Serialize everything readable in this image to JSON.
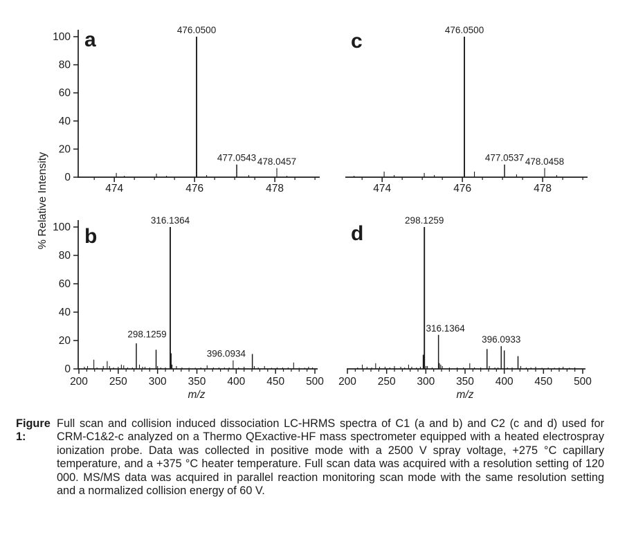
{
  "figure": {
    "caption_label": "Figure 1:",
    "caption_text": "Full scan and collision induced dissociation LC-HRMS spectra of C1 (a and b) and C2 (c and d) used for CRM-C1&2-c analyzed on a Thermo QExactive-HF mass spectrometer equipped with a heated electrospray ionization probe. Data was collected in positive mode with a 2500 V spray voltage, +275 °C capillary temperature, and a +375 °C heater temperature. Full scan data was acquired with a resolution setting of 120 000. MS/MS data was acquired in parallel reaction monitoring scan mode with the same resolution setting and a normalized collision energy of 60 V.",
    "y_axis_label": "% Relative Intensity",
    "colors": {
      "ink": "#1b1b1b",
      "background": "#ffffff"
    }
  },
  "chart_data": [
    {
      "id": "a",
      "type": "bar",
      "panel_label": "a",
      "xlabel": "",
      "ylabel": "% Relative Intensity",
      "xlim": [
        473.1,
        479.05
      ],
      "ylim": [
        0,
        100
      ],
      "x_major_ticks": [
        474,
        476,
        478
      ],
      "x_minor_step": 0.5,
      "y_ticks": [
        0,
        20,
        40,
        60,
        80,
        100
      ],
      "show_y_axis": true,
      "peaks": [
        {
          "mz": 474.05,
          "intensity": 3
        },
        {
          "mz": 474.25,
          "intensity": 1
        },
        {
          "mz": 475.05,
          "intensity": 2.5
        },
        {
          "mz": 475.3,
          "intensity": 1
        },
        {
          "mz": 476.05,
          "intensity": 100,
          "label": "476.0500"
        },
        {
          "mz": 476.3,
          "intensity": 1.5
        },
        {
          "mz": 477.05,
          "intensity": 9,
          "label": "477.0543"
        },
        {
          "mz": 477.35,
          "intensity": 1.5
        },
        {
          "mz": 478.05,
          "intensity": 6.5,
          "label": "478.0457"
        },
        {
          "mz": 478.3,
          "intensity": 1
        }
      ]
    },
    {
      "id": "c",
      "type": "bar",
      "panel_label": "c",
      "xlabel": "",
      "ylabel": "% Relative Intensity",
      "xlim": [
        473.1,
        479.05
      ],
      "ylim": [
        0,
        100
      ],
      "x_major_ticks": [
        474,
        476,
        478
      ],
      "x_minor_step": 0.5,
      "y_ticks": [
        0,
        20,
        40,
        60,
        80,
        100
      ],
      "show_y_axis": false,
      "peaks": [
        {
          "mz": 473.3,
          "intensity": 1
        },
        {
          "mz": 474.05,
          "intensity": 4
        },
        {
          "mz": 474.3,
          "intensity": 1.5
        },
        {
          "mz": 475.05,
          "intensity": 3
        },
        {
          "mz": 475.3,
          "intensity": 1.5
        },
        {
          "mz": 476.05,
          "intensity": 100,
          "label": "476.0500"
        },
        {
          "mz": 476.3,
          "intensity": 4
        },
        {
          "mz": 477.05,
          "intensity": 9,
          "label": "477.0537"
        },
        {
          "mz": 477.35,
          "intensity": 2
        },
        {
          "mz": 478.05,
          "intensity": 6.5,
          "label": "478.0458"
        },
        {
          "mz": 478.35,
          "intensity": 1.5
        }
      ]
    },
    {
      "id": "b",
      "type": "bar",
      "panel_label": "b",
      "xlabel": "m/z",
      "ylabel": "% Relative Intensity",
      "xlim": [
        200,
        500
      ],
      "ylim": [
        0,
        100
      ],
      "x_major_ticks": [
        200,
        250,
        300,
        350,
        400,
        450,
        500
      ],
      "x_minor_step": 10,
      "y_ticks": [
        0,
        20,
        40,
        60,
        80,
        100
      ],
      "show_y_axis": true,
      "peaks": [
        {
          "mz": 207,
          "intensity": 1.5
        },
        {
          "mz": 211,
          "intensity": 2
        },
        {
          "mz": 219,
          "intensity": 6.5
        },
        {
          "mz": 223,
          "intensity": 1
        },
        {
          "mz": 231,
          "intensity": 2
        },
        {
          "mz": 236,
          "intensity": 5.5
        },
        {
          "mz": 239,
          "intensity": 2
        },
        {
          "mz": 244,
          "intensity": 1
        },
        {
          "mz": 250,
          "intensity": 1.5
        },
        {
          "mz": 254,
          "intensity": 3
        },
        {
          "mz": 257,
          "intensity": 2.5
        },
        {
          "mz": 262,
          "intensity": 1
        },
        {
          "mz": 268,
          "intensity": 1
        },
        {
          "mz": 273,
          "intensity": 18
        },
        {
          "mz": 277,
          "intensity": 3
        },
        {
          "mz": 281,
          "intensity": 1.5
        },
        {
          "mz": 284,
          "intensity": 1.5
        },
        {
          "mz": 290,
          "intensity": 1
        },
        {
          "mz": 298.13,
          "intensity": 13.5,
          "label": "298.1259",
          "label_dx": -13,
          "label_dy": -13
        },
        {
          "mz": 300,
          "intensity": 2
        },
        {
          "mz": 304,
          "intensity": 1
        },
        {
          "mz": 310,
          "intensity": 1
        },
        {
          "mz": 316.14,
          "intensity": 100,
          "label": "316.1364"
        },
        {
          "mz": 317.2,
          "intensity": 11
        },
        {
          "mz": 318.4,
          "intensity": 3
        },
        {
          "mz": 324,
          "intensity": 2
        },
        {
          "mz": 331,
          "intensity": 1
        },
        {
          "mz": 340,
          "intensity": 0.8
        },
        {
          "mz": 348,
          "intensity": 0.8
        },
        {
          "mz": 355,
          "intensity": 1
        },
        {
          "mz": 363,
          "intensity": 2.5
        },
        {
          "mz": 371,
          "intensity": 1
        },
        {
          "mz": 378,
          "intensity": 1
        },
        {
          "mz": 385,
          "intensity": 1
        },
        {
          "mz": 391,
          "intensity": 1
        },
        {
          "mz": 396.09,
          "intensity": 6,
          "label": "396.0934",
          "label_dx": -10
        },
        {
          "mz": 403,
          "intensity": 1
        },
        {
          "mz": 410,
          "intensity": 1.5
        },
        {
          "mz": 420.5,
          "intensity": 10.5
        },
        {
          "mz": 423,
          "intensity": 2
        },
        {
          "mz": 428,
          "intensity": 1
        },
        {
          "mz": 436,
          "intensity": 2
        },
        {
          "mz": 445,
          "intensity": 0.8
        },
        {
          "mz": 452,
          "intensity": 1
        },
        {
          "mz": 459,
          "intensity": 1
        },
        {
          "mz": 466,
          "intensity": 1
        },
        {
          "mz": 473,
          "intensity": 4.5
        },
        {
          "mz": 480,
          "intensity": 0.8
        },
        {
          "mz": 487,
          "intensity": 0.8
        },
        {
          "mz": 492,
          "intensity": 1.5
        },
        {
          "mz": 497,
          "intensity": 1
        }
      ]
    },
    {
      "id": "d",
      "type": "bar",
      "panel_label": "d",
      "xlabel": "m/z",
      "ylabel": "% Relative Intensity",
      "xlim": [
        200,
        500
      ],
      "ylim": [
        0,
        100
      ],
      "x_major_ticks": [
        200,
        250,
        300,
        350,
        400,
        450,
        500
      ],
      "x_minor_step": 10,
      "y_ticks": [
        0,
        20,
        40,
        60,
        80,
        100
      ],
      "show_y_axis": false,
      "peaks": [
        {
          "mz": 213,
          "intensity": 1
        },
        {
          "mz": 219,
          "intensity": 3
        },
        {
          "mz": 225,
          "intensity": 1.5
        },
        {
          "mz": 231,
          "intensity": 1
        },
        {
          "mz": 236,
          "intensity": 4
        },
        {
          "mz": 241,
          "intensity": 1.5
        },
        {
          "mz": 248,
          "intensity": 1.5
        },
        {
          "mz": 254,
          "intensity": 1
        },
        {
          "mz": 260,
          "intensity": 2
        },
        {
          "mz": 268,
          "intensity": 1.5
        },
        {
          "mz": 273,
          "intensity": 1
        },
        {
          "mz": 278,
          "intensity": 3
        },
        {
          "mz": 282,
          "intensity": 1.5
        },
        {
          "mz": 288,
          "intensity": 1
        },
        {
          "mz": 293,
          "intensity": 1.5
        },
        {
          "mz": 296.7,
          "intensity": 10
        },
        {
          "mz": 297.3,
          "intensity": 9
        },
        {
          "mz": 298.13,
          "intensity": 100,
          "label": "298.1259"
        },
        {
          "mz": 300.2,
          "intensity": 2
        },
        {
          "mz": 302,
          "intensity": 2
        },
        {
          "mz": 308,
          "intensity": 1
        },
        {
          "mz": 316.14,
          "intensity": 24,
          "label": "316.1364",
          "label_dx": 10
        },
        {
          "mz": 317.3,
          "intensity": 4
        },
        {
          "mz": 319,
          "intensity": 3
        },
        {
          "mz": 321,
          "intensity": 2
        },
        {
          "mz": 330,
          "intensity": 1
        },
        {
          "mz": 340,
          "intensity": 1
        },
        {
          "mz": 348,
          "intensity": 1
        },
        {
          "mz": 356,
          "intensity": 4
        },
        {
          "mz": 362,
          "intensity": 1
        },
        {
          "mz": 370,
          "intensity": 1
        },
        {
          "mz": 378,
          "intensity": 14
        },
        {
          "mz": 381,
          "intensity": 2
        },
        {
          "mz": 388,
          "intensity": 1
        },
        {
          "mz": 392,
          "intensity": 1
        },
        {
          "mz": 396.09,
          "intensity": 16,
          "label": "396.0933"
        },
        {
          "mz": 400,
          "intensity": 13
        },
        {
          "mz": 404,
          "intensity": 1
        },
        {
          "mz": 410,
          "intensity": 1
        },
        {
          "mz": 417.5,
          "intensity": 9
        },
        {
          "mz": 421,
          "intensity": 2
        },
        {
          "mz": 428,
          "intensity": 1
        },
        {
          "mz": 434,
          "intensity": 1
        },
        {
          "mz": 440,
          "intensity": 1.5
        },
        {
          "mz": 448,
          "intensity": 0.8
        },
        {
          "mz": 456,
          "intensity": 1
        },
        {
          "mz": 464,
          "intensity": 0.8
        },
        {
          "mz": 470,
          "intensity": 1
        },
        {
          "mz": 475,
          "intensity": 1.5
        },
        {
          "mz": 483,
          "intensity": 0.8
        },
        {
          "mz": 490,
          "intensity": 1
        }
      ]
    }
  ]
}
